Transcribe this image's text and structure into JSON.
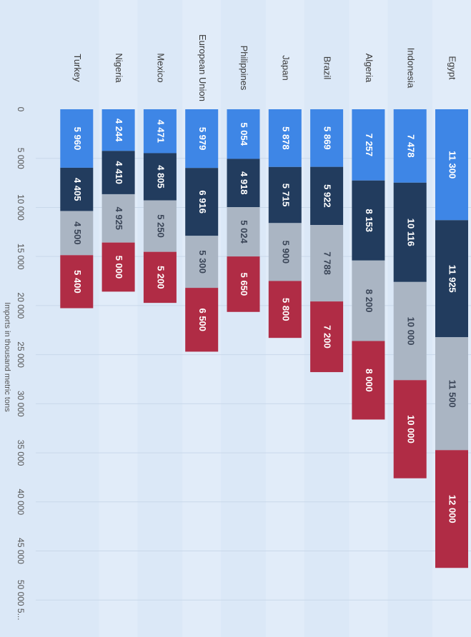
{
  "chart_data": {
    "type": "bar",
    "orientation": "horizontal-stacked",
    "categories": [
      "Egypt",
      "Indonesia",
      "Algeria",
      "Brazil",
      "Japan",
      "Philippines",
      "European Union",
      "Mexico",
      "Nigeria",
      "Turkey"
    ],
    "series": [
      {
        "values": [
          11300,
          7478,
          7257,
          5869,
          5878,
          5054,
          5979,
          4471,
          4244,
          5960
        ],
        "color": "#3e86e6",
        "labels": [
          "11 300",
          "7 478",
          "7 257",
          "5 869",
          "5 878",
          "5 054",
          "5 979",
          "4 471",
          "4 244",
          "5 960"
        ]
      },
      {
        "values": [
          11925,
          10116,
          8153,
          5922,
          5715,
          4918,
          6916,
          4805,
          4410,
          4405
        ],
        "color": "#223c5e",
        "labels": [
          "11 925",
          "10 116",
          "8 153",
          "5 922",
          "5 715",
          "4 918",
          "6 916",
          "4 805",
          "4 410",
          "4 405"
        ]
      },
      {
        "values": [
          11500,
          10000,
          8200,
          7788,
          5900,
          5024,
          5300,
          5250,
          4925,
          4500
        ],
        "color": "#aab5c3",
        "labels": [
          "11 500",
          "10 000",
          "8 200",
          "7 788",
          "5 900",
          "5 024",
          "5 300",
          "5 250",
          "4 925",
          "4 500"
        ]
      },
      {
        "values": [
          12000,
          10000,
          8000,
          7200,
          5800,
          5650,
          6500,
          5200,
          5000,
          5400
        ],
        "color": "#b02c45",
        "labels": [
          "12 000",
          "10 000",
          "8 000",
          "7 200",
          "5 800",
          "5 650",
          "6 500",
          "5 200",
          "5 000",
          "5 400"
        ]
      }
    ],
    "xlabel": "Imports in thousand metric tons",
    "xlim": [
      0,
      55000
    ],
    "ticks": [
      0,
      5000,
      10000,
      15000,
      20000,
      25000,
      30000,
      35000,
      40000,
      45000,
      50000
    ],
    "tick_labels": [
      "0",
      "5 000",
      "10 000",
      "15 000",
      "20 000",
      "25 000",
      "30 000",
      "35 000",
      "40 000",
      "45 000",
      "50 000 5..."
    ],
    "grid": true,
    "legend": "none",
    "rotation": "rotated 90 degrees clockwise"
  }
}
